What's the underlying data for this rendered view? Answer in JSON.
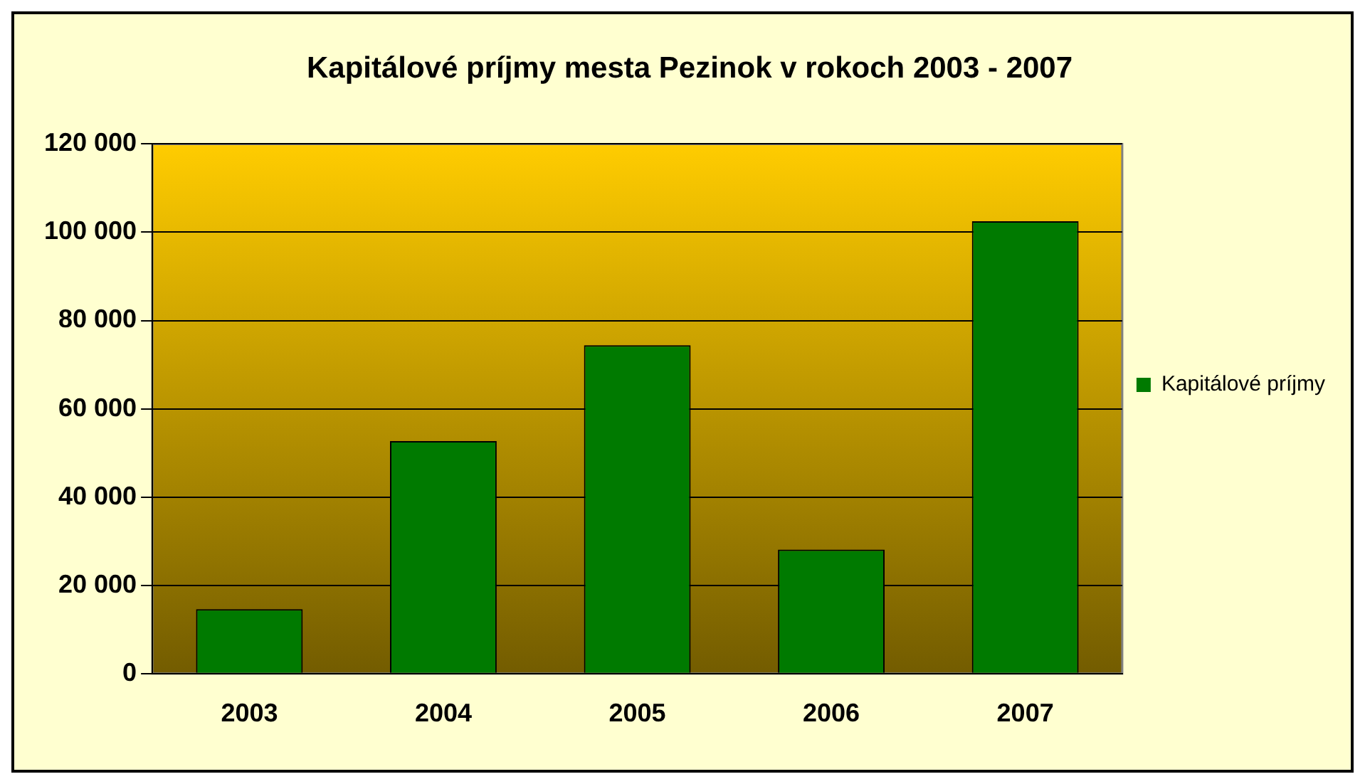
{
  "chart_data": {
    "type": "bar",
    "title": "Kapitálové príjmy mesta Pezinok v rokoch 2003 - 2007",
    "categories": [
      "2003",
      "2004",
      "2005",
      "2006",
      "2007"
    ],
    "series": [
      {
        "name": "Kapitálové príjmy",
        "color": "#007a00",
        "values": [
          14600,
          52700,
          74400,
          28100,
          102500
        ]
      }
    ],
    "ylim": [
      0,
      120000
    ],
    "yticks": [
      {
        "value": 0,
        "label": "0"
      },
      {
        "value": 20000,
        "label": "20 000"
      },
      {
        "value": 40000,
        "label": "40 000"
      },
      {
        "value": 60000,
        "label": "60 000"
      },
      {
        "value": 80000,
        "label": "80 000"
      },
      {
        "value": 100000,
        "label": "100 000"
      },
      {
        "value": 120000,
        "label": "120 000"
      }
    ],
    "grid": "y",
    "legend": "right"
  }
}
